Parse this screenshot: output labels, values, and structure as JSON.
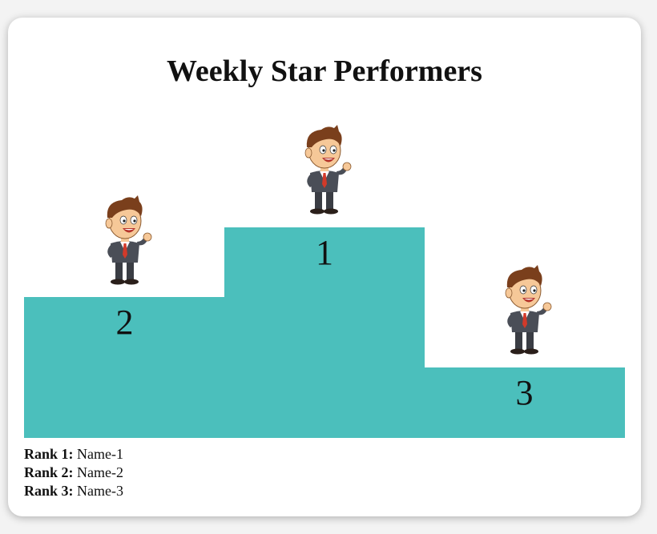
{
  "title": "Weekly Star Performers",
  "colors": {
    "podium": "#4bbfbc",
    "background": "#f3f3f3",
    "card": "#ffffff"
  },
  "podium": [
    {
      "place": "2"
    },
    {
      "place": "1"
    },
    {
      "place": "3"
    }
  ],
  "ranks": [
    {
      "label": "Rank 1:",
      "name": "Name-1"
    },
    {
      "label": "Rank 2:",
      "name": "Name-2"
    },
    {
      "label": "Rank 3:",
      "name": "Name-3"
    }
  ],
  "icons": {
    "performer": "cartoon-businessman-icon"
  }
}
